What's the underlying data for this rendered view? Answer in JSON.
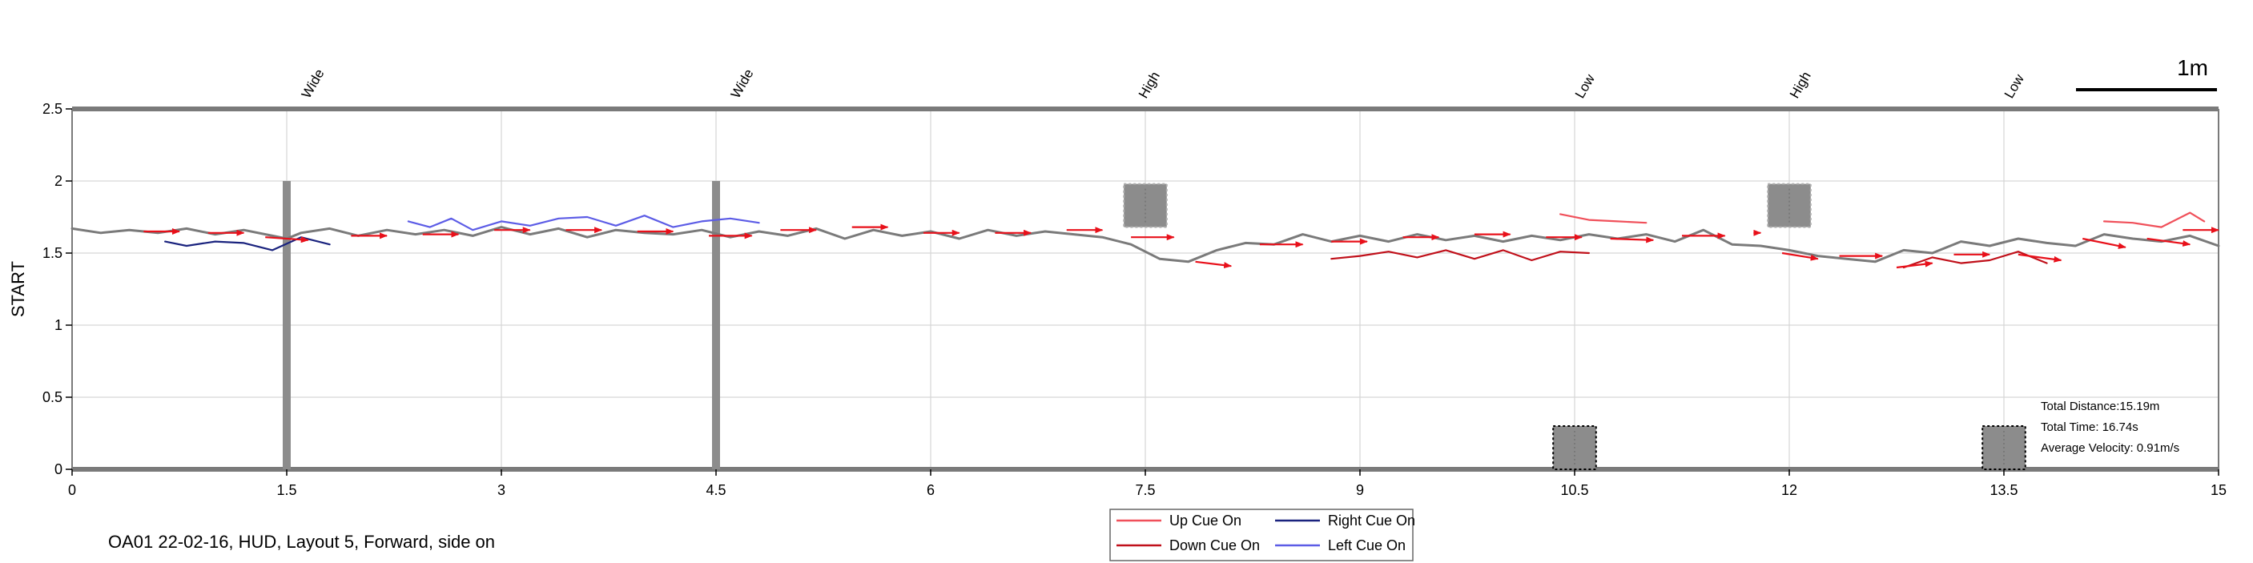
{
  "chart_data": {
    "type": "line",
    "ylabel": "START",
    "xlim": [
      0,
      15
    ],
    "ylim": [
      0,
      2.5
    ],
    "x_ticks": [
      "0",
      "1.5",
      "3",
      "4.5",
      "6",
      "7.5",
      "9",
      "10.5",
      "12",
      "13.5",
      "15"
    ],
    "y_ticks": [
      "0",
      "0.5",
      "1",
      "1.5",
      "2",
      "2.5"
    ],
    "grid": true,
    "top_labels": [
      {
        "x": 1.7,
        "text": "Wide"
      },
      {
        "x": 4.7,
        "text": "Wide"
      },
      {
        "x": 7.55,
        "text": "High"
      },
      {
        "x": 10.6,
        "text": "Low"
      },
      {
        "x": 12.1,
        "text": "High"
      },
      {
        "x": 13.6,
        "text": "Low"
      }
    ],
    "scale_bar_label": "1m",
    "obstacles": [
      {
        "kind": "post",
        "x": 1.5,
        "y_range": [
          0,
          2.0
        ]
      },
      {
        "kind": "post",
        "x": 4.5,
        "y_range": [
          0,
          2.0
        ]
      },
      {
        "kind": "box-high",
        "x_range": [
          7.35,
          7.65
        ],
        "y_range": [
          1.68,
          1.98
        ]
      },
      {
        "kind": "box-high",
        "x_range": [
          11.85,
          12.15
        ],
        "y_range": [
          1.68,
          1.98
        ]
      },
      {
        "kind": "box-low",
        "x_range": [
          10.35,
          10.65
        ],
        "y_range": [
          0,
          0.3
        ]
      },
      {
        "kind": "box-low",
        "x_range": [
          13.35,
          13.65
        ],
        "y_range": [
          0,
          0.3
        ]
      }
    ],
    "series": [
      {
        "name": "path",
        "color": "#7a7a7a",
        "x": [
          0,
          0.2,
          0.4,
          0.6,
          0.8,
          1.0,
          1.2,
          1.4,
          1.5,
          1.6,
          1.8,
          2.0,
          2.2,
          2.4,
          2.6,
          2.8,
          3.0,
          3.2,
          3.4,
          3.6,
          3.8,
          4.0,
          4.2,
          4.4,
          4.6,
          4.8,
          5.0,
          5.2,
          5.4,
          5.6,
          5.8,
          6.0,
          6.2,
          6.4,
          6.6,
          6.8,
          7.0,
          7.2,
          7.4,
          7.6,
          7.8,
          8.0,
          8.2,
          8.4,
          8.6,
          8.8,
          9.0,
          9.2,
          9.4,
          9.6,
          9.8,
          10.0,
          10.2,
          10.4,
          10.6,
          10.8,
          11.0,
          11.2,
          11.4,
          11.6,
          11.8,
          12.0,
          12.2,
          12.4,
          12.6,
          12.8,
          13.0,
          13.2,
          13.4,
          13.6,
          13.8,
          14.0,
          14.2,
          14.4,
          14.6,
          14.8,
          15.0
        ],
        "y": [
          1.67,
          1.64,
          1.66,
          1.64,
          1.67,
          1.63,
          1.66,
          1.62,
          1.6,
          1.64,
          1.67,
          1.62,
          1.66,
          1.63,
          1.66,
          1.62,
          1.68,
          1.63,
          1.67,
          1.61,
          1.66,
          1.64,
          1.63,
          1.66,
          1.61,
          1.65,
          1.62,
          1.67,
          1.6,
          1.66,
          1.62,
          1.65,
          1.6,
          1.66,
          1.62,
          1.65,
          1.63,
          1.61,
          1.56,
          1.46,
          1.44,
          1.52,
          1.57,
          1.56,
          1.63,
          1.58,
          1.62,
          1.58,
          1.63,
          1.59,
          1.62,
          1.58,
          1.62,
          1.59,
          1.63,
          1.6,
          1.63,
          1.58,
          1.66,
          1.56,
          1.55,
          1.52,
          1.48,
          1.46,
          1.44,
          1.52,
          1.5,
          1.58,
          1.55,
          1.6,
          1.57,
          1.55,
          1.63,
          1.6,
          1.58,
          1.62,
          1.55
        ]
      },
      {
        "name": "Right Cue On",
        "color": "#1a237e",
        "x": [
          0.65,
          0.8,
          1.0,
          1.2,
          1.4,
          1.6,
          1.8
        ],
        "y": [
          1.58,
          1.55,
          1.58,
          1.57,
          1.52,
          1.61,
          1.56
        ]
      },
      {
        "name": "Left Cue On",
        "color": "#5c5ce6",
        "x": [
          2.35,
          2.5,
          2.65,
          2.8,
          3.0,
          3.2,
          3.4,
          3.6,
          3.8,
          4.0,
          4.2,
          4.4,
          4.6,
          4.8
        ],
        "y": [
          1.72,
          1.68,
          1.74,
          1.66,
          1.72,
          1.69,
          1.74,
          1.75,
          1.69,
          1.76,
          1.68,
          1.72,
          1.74,
          1.71
        ]
      },
      {
        "name": "Down Cue On",
        "color": "#c0101a",
        "x": [
          8.8,
          9.0,
          9.2,
          9.4,
          9.6,
          9.8,
          10.0,
          10.2,
          10.4,
          10.6
        ],
        "y": [
          1.46,
          1.48,
          1.51,
          1.47,
          1.52,
          1.46,
          1.52,
          1.45,
          1.51,
          1.5
        ]
      },
      {
        "name": "Down Cue On",
        "color": "#c0101a",
        "x": [
          12.8,
          13.0,
          13.2,
          13.4,
          13.6,
          13.8
        ],
        "y": [
          1.4,
          1.47,
          1.43,
          1.45,
          1.51,
          1.43
        ]
      },
      {
        "name": "Up Cue On",
        "color": "#f0505a",
        "x": [
          10.4,
          10.6,
          10.8,
          11.0
        ],
        "y": [
          1.77,
          1.73,
          1.72,
          1.71
        ]
      },
      {
        "name": "Up Cue On",
        "color": "#f0505a",
        "x": [
          14.2,
          14.4,
          14.6,
          14.8,
          14.9
        ],
        "y": [
          1.72,
          1.71,
          1.68,
          1.78,
          1.72
        ]
      }
    ],
    "arrows": [
      {
        "x": 0.5,
        "y": 1.65,
        "dx": 0.25,
        "dy": 0.0
      },
      {
        "x": 0.95,
        "y": 1.64,
        "dx": 0.25,
        "dy": 0.0
      },
      {
        "x": 1.35,
        "y": 1.61,
        "dx": 0.3,
        "dy": -0.02
      },
      {
        "x": 1.95,
        "y": 1.62,
        "dx": 0.25,
        "dy": 0.0
      },
      {
        "x": 2.45,
        "y": 1.63,
        "dx": 0.25,
        "dy": 0.0
      },
      {
        "x": 2.95,
        "y": 1.66,
        "dx": 0.25,
        "dy": 0.0
      },
      {
        "x": 3.45,
        "y": 1.66,
        "dx": 0.25,
        "dy": 0.0
      },
      {
        "x": 3.95,
        "y": 1.65,
        "dx": 0.25,
        "dy": 0.0
      },
      {
        "x": 4.45,
        "y": 1.62,
        "dx": 0.3,
        "dy": 0.0
      },
      {
        "x": 4.95,
        "y": 1.66,
        "dx": 0.25,
        "dy": 0.0
      },
      {
        "x": 5.45,
        "y": 1.68,
        "dx": 0.25,
        "dy": 0.0
      },
      {
        "x": 5.95,
        "y": 1.64,
        "dx": 0.25,
        "dy": 0.0
      },
      {
        "x": 6.45,
        "y": 1.64,
        "dx": 0.25,
        "dy": 0.0
      },
      {
        "x": 6.95,
        "y": 1.66,
        "dx": 0.25,
        "dy": 0.0
      },
      {
        "x": 7.4,
        "y": 1.61,
        "dx": 0.3,
        "dy": 0.0
      },
      {
        "x": 7.85,
        "y": 1.44,
        "dx": 0.25,
        "dy": -0.03
      },
      {
        "x": 8.3,
        "y": 1.56,
        "dx": 0.3,
        "dy": 0.0
      },
      {
        "x": 8.8,
        "y": 1.58,
        "dx": 0.25,
        "dy": 0.0
      },
      {
        "x": 9.3,
        "y": 1.61,
        "dx": 0.25,
        "dy": 0.0
      },
      {
        "x": 9.8,
        "y": 1.63,
        "dx": 0.25,
        "dy": 0.0
      },
      {
        "x": 10.3,
        "y": 1.61,
        "dx": 0.25,
        "dy": 0.0
      },
      {
        "x": 10.75,
        "y": 1.6,
        "dx": 0.3,
        "dy": -0.01
      },
      {
        "x": 11.25,
        "y": 1.62,
        "dx": 0.3,
        "dy": 0.0
      },
      {
        "x": 11.75,
        "y": 1.64,
        "dx": 0.05,
        "dy": 0.0
      },
      {
        "x": 11.95,
        "y": 1.5,
        "dx": 0.25,
        "dy": -0.04
      },
      {
        "x": 12.35,
        "y": 1.48,
        "dx": 0.3,
        "dy": 0.0
      },
      {
        "x": 12.75,
        "y": 1.4,
        "dx": 0.25,
        "dy": 0.03
      },
      {
        "x": 13.15,
        "y": 1.49,
        "dx": 0.25,
        "dy": 0.0
      },
      {
        "x": 13.6,
        "y": 1.49,
        "dx": 0.3,
        "dy": -0.04
      },
      {
        "x": 14.05,
        "y": 1.6,
        "dx": 0.3,
        "dy": -0.06
      },
      {
        "x": 14.5,
        "y": 1.6,
        "dx": 0.3,
        "dy": -0.04
      },
      {
        "x": 14.75,
        "y": 1.66,
        "dx": 0.25,
        "dy": 0.0
      }
    ],
    "stats": [
      "Total Distance:15.19m",
      "Total Time: 16.74s",
      "Average Velocity: 0.91m/s"
    ],
    "caption": "OA01 22-02-16, HUD, Layout 5, Forward, side on",
    "legend": {
      "placement": "bottom-center",
      "entries": [
        {
          "label": "Up Cue On",
          "color": "#f0505a"
        },
        {
          "label": "Right Cue On",
          "color": "#1a237e"
        },
        {
          "label": "Down Cue On",
          "color": "#c0101a"
        },
        {
          "label": "Left Cue On",
          "color": "#5c5ce6"
        }
      ]
    }
  }
}
